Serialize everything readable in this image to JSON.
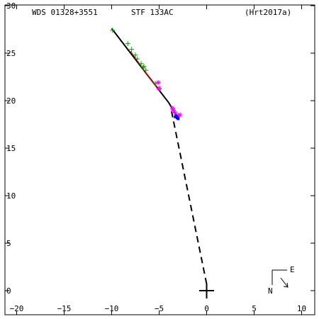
{
  "header": {
    "wds_label": "WDS 01328+3551",
    "discoverer_label": "STF 133AC",
    "reference_label": "(Hrt2017a)"
  },
  "compass": {
    "east_label": "E",
    "north_label": "N"
  },
  "chart_data": {
    "type": "scatter",
    "title": "",
    "xlabel": "",
    "ylabel": "",
    "xlim": [
      -20,
      10
    ],
    "ylim": [
      0,
      30
    ],
    "x_ticks": [
      -20,
      -15,
      -10,
      -5,
      0,
      5,
      10
    ],
    "x_tick_labels": [
      "−20",
      "−15",
      "−10",
      "−5",
      "0",
      "5",
      "10"
    ],
    "y_ticks": [
      0,
      5,
      10,
      15,
      20,
      25,
      30
    ],
    "y_tick_labels": [
      "0",
      "5",
      "10",
      "15",
      "20",
      "25",
      "30"
    ],
    "grid": false,
    "primary": [
      0,
      0
    ],
    "series": [
      {
        "marker": "plus",
        "color": "#00a000",
        "points": [
          [
            -9.9,
            27.4
          ],
          [
            -8.3,
            26.0
          ],
          [
            -7.9,
            25.4
          ],
          [
            -7.5,
            24.8
          ],
          [
            -7.3,
            24.4
          ],
          [
            -6.9,
            23.9
          ],
          [
            -6.6,
            23.6
          ],
          [
            -6.4,
            23.2
          ],
          [
            -6.7,
            23.5
          ],
          [
            -5.4,
            21.8
          ],
          [
            -5.0,
            21.2
          ]
        ]
      },
      {
        "marker": "star",
        "color": "#ff00ff",
        "points": [
          [
            -5.1,
            21.9
          ],
          [
            -5.0,
            21.3
          ],
          [
            -3.5,
            19.0
          ],
          [
            -3.3,
            18.7
          ],
          [
            -3.0,
            18.4
          ],
          [
            -2.8,
            18.5
          ],
          [
            -3.6,
            19.2
          ]
        ]
      },
      {
        "marker": "square",
        "color": "#0000ff",
        "points": [
          [
            -3.3,
            18.3
          ],
          [
            -3.1,
            18.2
          ],
          [
            -3.2,
            18.4
          ],
          [
            -3.0,
            18.1
          ]
        ]
      }
    ],
    "lines": [
      {
        "style": "solid",
        "color": "#000000",
        "points": [
          [
            -10.0,
            27.6
          ],
          [
            -4.0,
            19.8
          ]
        ]
      },
      {
        "style": "solid",
        "color": "#000000",
        "points": [
          [
            -4.0,
            19.8
          ],
          [
            -3.0,
            18.1
          ]
        ]
      },
      {
        "style": "solid",
        "color": "#ff0000",
        "points": [
          [
            -8.0,
            25.2
          ],
          [
            -5.0,
            21.0
          ]
        ]
      },
      {
        "style": "dashed",
        "color": "#000000",
        "points": [
          [
            -3.7,
            18.9
          ],
          [
            0.0,
            0.7
          ]
        ]
      }
    ]
  }
}
